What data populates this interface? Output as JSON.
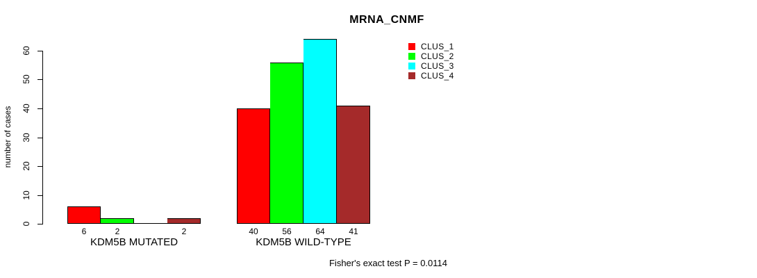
{
  "chart_data": {
    "type": "bar",
    "title": "MRNA_CNMF",
    "ylabel": "number of cases",
    "xlabel": "",
    "ylim": [
      0,
      60
    ],
    "yticks": [
      0,
      10,
      20,
      30,
      40,
      50,
      60
    ],
    "grid": false,
    "categories": [
      "KDM5B MUTATED",
      "KDM5B WILD-TYPE"
    ],
    "series": [
      {
        "name": "CLUS_1",
        "color": "#FF0000",
        "values": [
          6,
          40
        ],
        "labels": [
          "6",
          "40"
        ]
      },
      {
        "name": "CLUS_2",
        "color": "#00FF00",
        "values": [
          2,
          56
        ],
        "labels": [
          "2",
          "56"
        ]
      },
      {
        "name": "CLUS_3",
        "color": "#00FFFF",
        "values": [
          0,
          64
        ],
        "labels": [
          "",
          "64"
        ]
      },
      {
        "name": "CLUS_4",
        "color": "#A52A2A",
        "values": [
          2,
          41
        ],
        "labels": [
          "2",
          "41"
        ]
      }
    ],
    "legend": {
      "position": "top-right",
      "entries": [
        "CLUS_1",
        "CLUS_2",
        "CLUS_3",
        "CLUS_4"
      ]
    },
    "annotation": "Fisher's exact test P = 0.0114",
    "bar_border_color": "#000000",
    "background_color": "#FFFFFF"
  }
}
